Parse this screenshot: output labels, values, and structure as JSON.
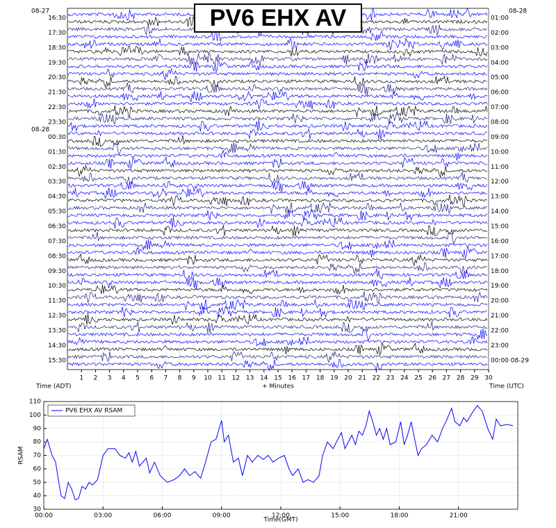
{
  "helicorder": {
    "title": "PV6 EHX AV",
    "left_date_start": "08-27",
    "left_date_mid": "08-28",
    "left_times": [
      "16:30",
      "17:30",
      "18:30",
      "19:30",
      "20:30",
      "21:30",
      "22:30",
      "23:30",
      "00:30",
      "01:30",
      "02:30",
      "03:30",
      "04:30",
      "05:30",
      "06:30",
      "07:30",
      "08:30",
      "09:30",
      "10:30",
      "11:30",
      "12:30",
      "13:30",
      "14:30",
      "15:30"
    ],
    "right_date_start": "08-28",
    "right_times": [
      "01:00",
      "02:00",
      "03:00",
      "04:00",
      "05:00",
      "06:00",
      "07:00",
      "08:00",
      "09:00",
      "10:00",
      "11:00",
      "12:00",
      "13:00",
      "14:00",
      "15:00",
      "16:00",
      "17:00",
      "18:00",
      "19:00",
      "20:00",
      "21:00",
      "22:00",
      "23:00",
      "00:00 08-29"
    ],
    "xlim": [
      0,
      30
    ],
    "xticks": [
      1,
      2,
      3,
      4,
      5,
      6,
      7,
      8,
      9,
      10,
      11,
      12,
      13,
      14,
      15,
      16,
      17,
      18,
      19,
      20,
      21,
      22,
      23,
      24,
      25,
      26,
      27,
      28,
      29,
      30
    ],
    "xlabel_left": "Time (ADT)",
    "xlabel_center": "+ Minutes",
    "xlabel_right": "Time (UTC)",
    "trace_colors": [
      "#0000ff",
      "#000000",
      "#1a1a80",
      "#0000ff"
    ]
  },
  "chart_data": {
    "type": "line",
    "ylabel": "RSAM",
    "xlabel": "Time(GMT)",
    "xlim": [
      0,
      24
    ],
    "ylim": [
      30,
      110
    ],
    "xticks": [
      {
        "value": 0,
        "label": "00:00"
      },
      {
        "value": 3,
        "label": "03:00"
      },
      {
        "value": 6,
        "label": "06:00"
      },
      {
        "value": 9,
        "label": "09:00"
      },
      {
        "value": 12,
        "label": "12:00"
      },
      {
        "value": 15,
        "label": "15:00"
      },
      {
        "value": 18,
        "label": "18:00"
      },
      {
        "value": 21,
        "label": "21:00"
      }
    ],
    "yticks": [
      30,
      40,
      50,
      60,
      70,
      80,
      90,
      100,
      110
    ],
    "grid": true,
    "legend": "upper-left",
    "x": [
      0,
      0.18,
      0.42,
      0.6,
      0.78,
      0.88,
      1.06,
      1.24,
      1.41,
      1.59,
      1.76,
      1.94,
      2.12,
      2.29,
      2.47,
      2.72,
      3.0,
      3.25,
      3.6,
      3.85,
      4.13,
      4.31,
      4.48,
      4.66,
      4.84,
      5.19,
      5.36,
      5.61,
      5.89,
      6.25,
      6.6,
      6.88,
      7.13,
      7.38,
      7.66,
      7.94,
      8.19,
      8.47,
      8.72,
      9.0,
      9.14,
      9.35,
      9.6,
      9.85,
      10.06,
      10.31,
      10.55,
      10.84,
      11.12,
      11.36,
      11.61,
      11.89,
      12.18,
      12.42,
      12.6,
      12.88,
      13.13,
      13.38,
      13.66,
      13.94,
      14.12,
      14.36,
      14.65,
      14.89,
      15.07,
      15.25,
      15.42,
      15.6,
      15.78,
      15.95,
      16.13,
      16.31,
      16.48,
      16.66,
      16.84,
      17.01,
      17.19,
      17.36,
      17.54,
      17.82,
      18.07,
      18.25,
      18.42,
      18.6,
      18.78,
      18.95,
      19.13,
      19.38,
      19.66,
      19.94,
      20.19,
      20.36,
      20.65,
      20.82,
      21.07,
      21.25,
      21.42,
      21.71,
      21.95,
      22.2,
      22.48,
      22.73,
      22.91,
      23.12,
      23.47,
      23.75
    ],
    "series": [
      {
        "name": "PV6 EHX AV RSAM",
        "color": "#0000ff",
        "values": [
          75,
          82,
          70,
          65,
          48,
          40,
          38,
          50,
          45,
          37,
          38,
          47,
          45,
          50,
          48,
          52,
          70,
          75,
          75,
          70,
          68,
          72,
          65,
          73,
          62,
          68,
          57,
          65,
          55,
          50,
          52,
          55,
          60,
          55,
          58,
          53,
          65,
          80,
          82,
          96,
          80,
          85,
          65,
          68,
          55,
          70,
          65,
          70,
          67,
          70,
          65,
          68,
          70,
          60,
          55,
          60,
          50,
          52,
          50,
          55,
          70,
          80,
          75,
          82,
          87,
          75,
          80,
          85,
          78,
          88,
          85,
          92,
          103,
          95,
          85,
          90,
          82,
          90,
          78,
          80,
          95,
          78,
          85,
          95,
          82,
          70,
          75,
          78,
          85,
          80,
          90,
          95,
          105,
          95,
          92,
          98,
          95,
          102,
          107,
          103,
          90,
          82,
          97,
          92,
          93,
          92
        ]
      }
    ]
  }
}
